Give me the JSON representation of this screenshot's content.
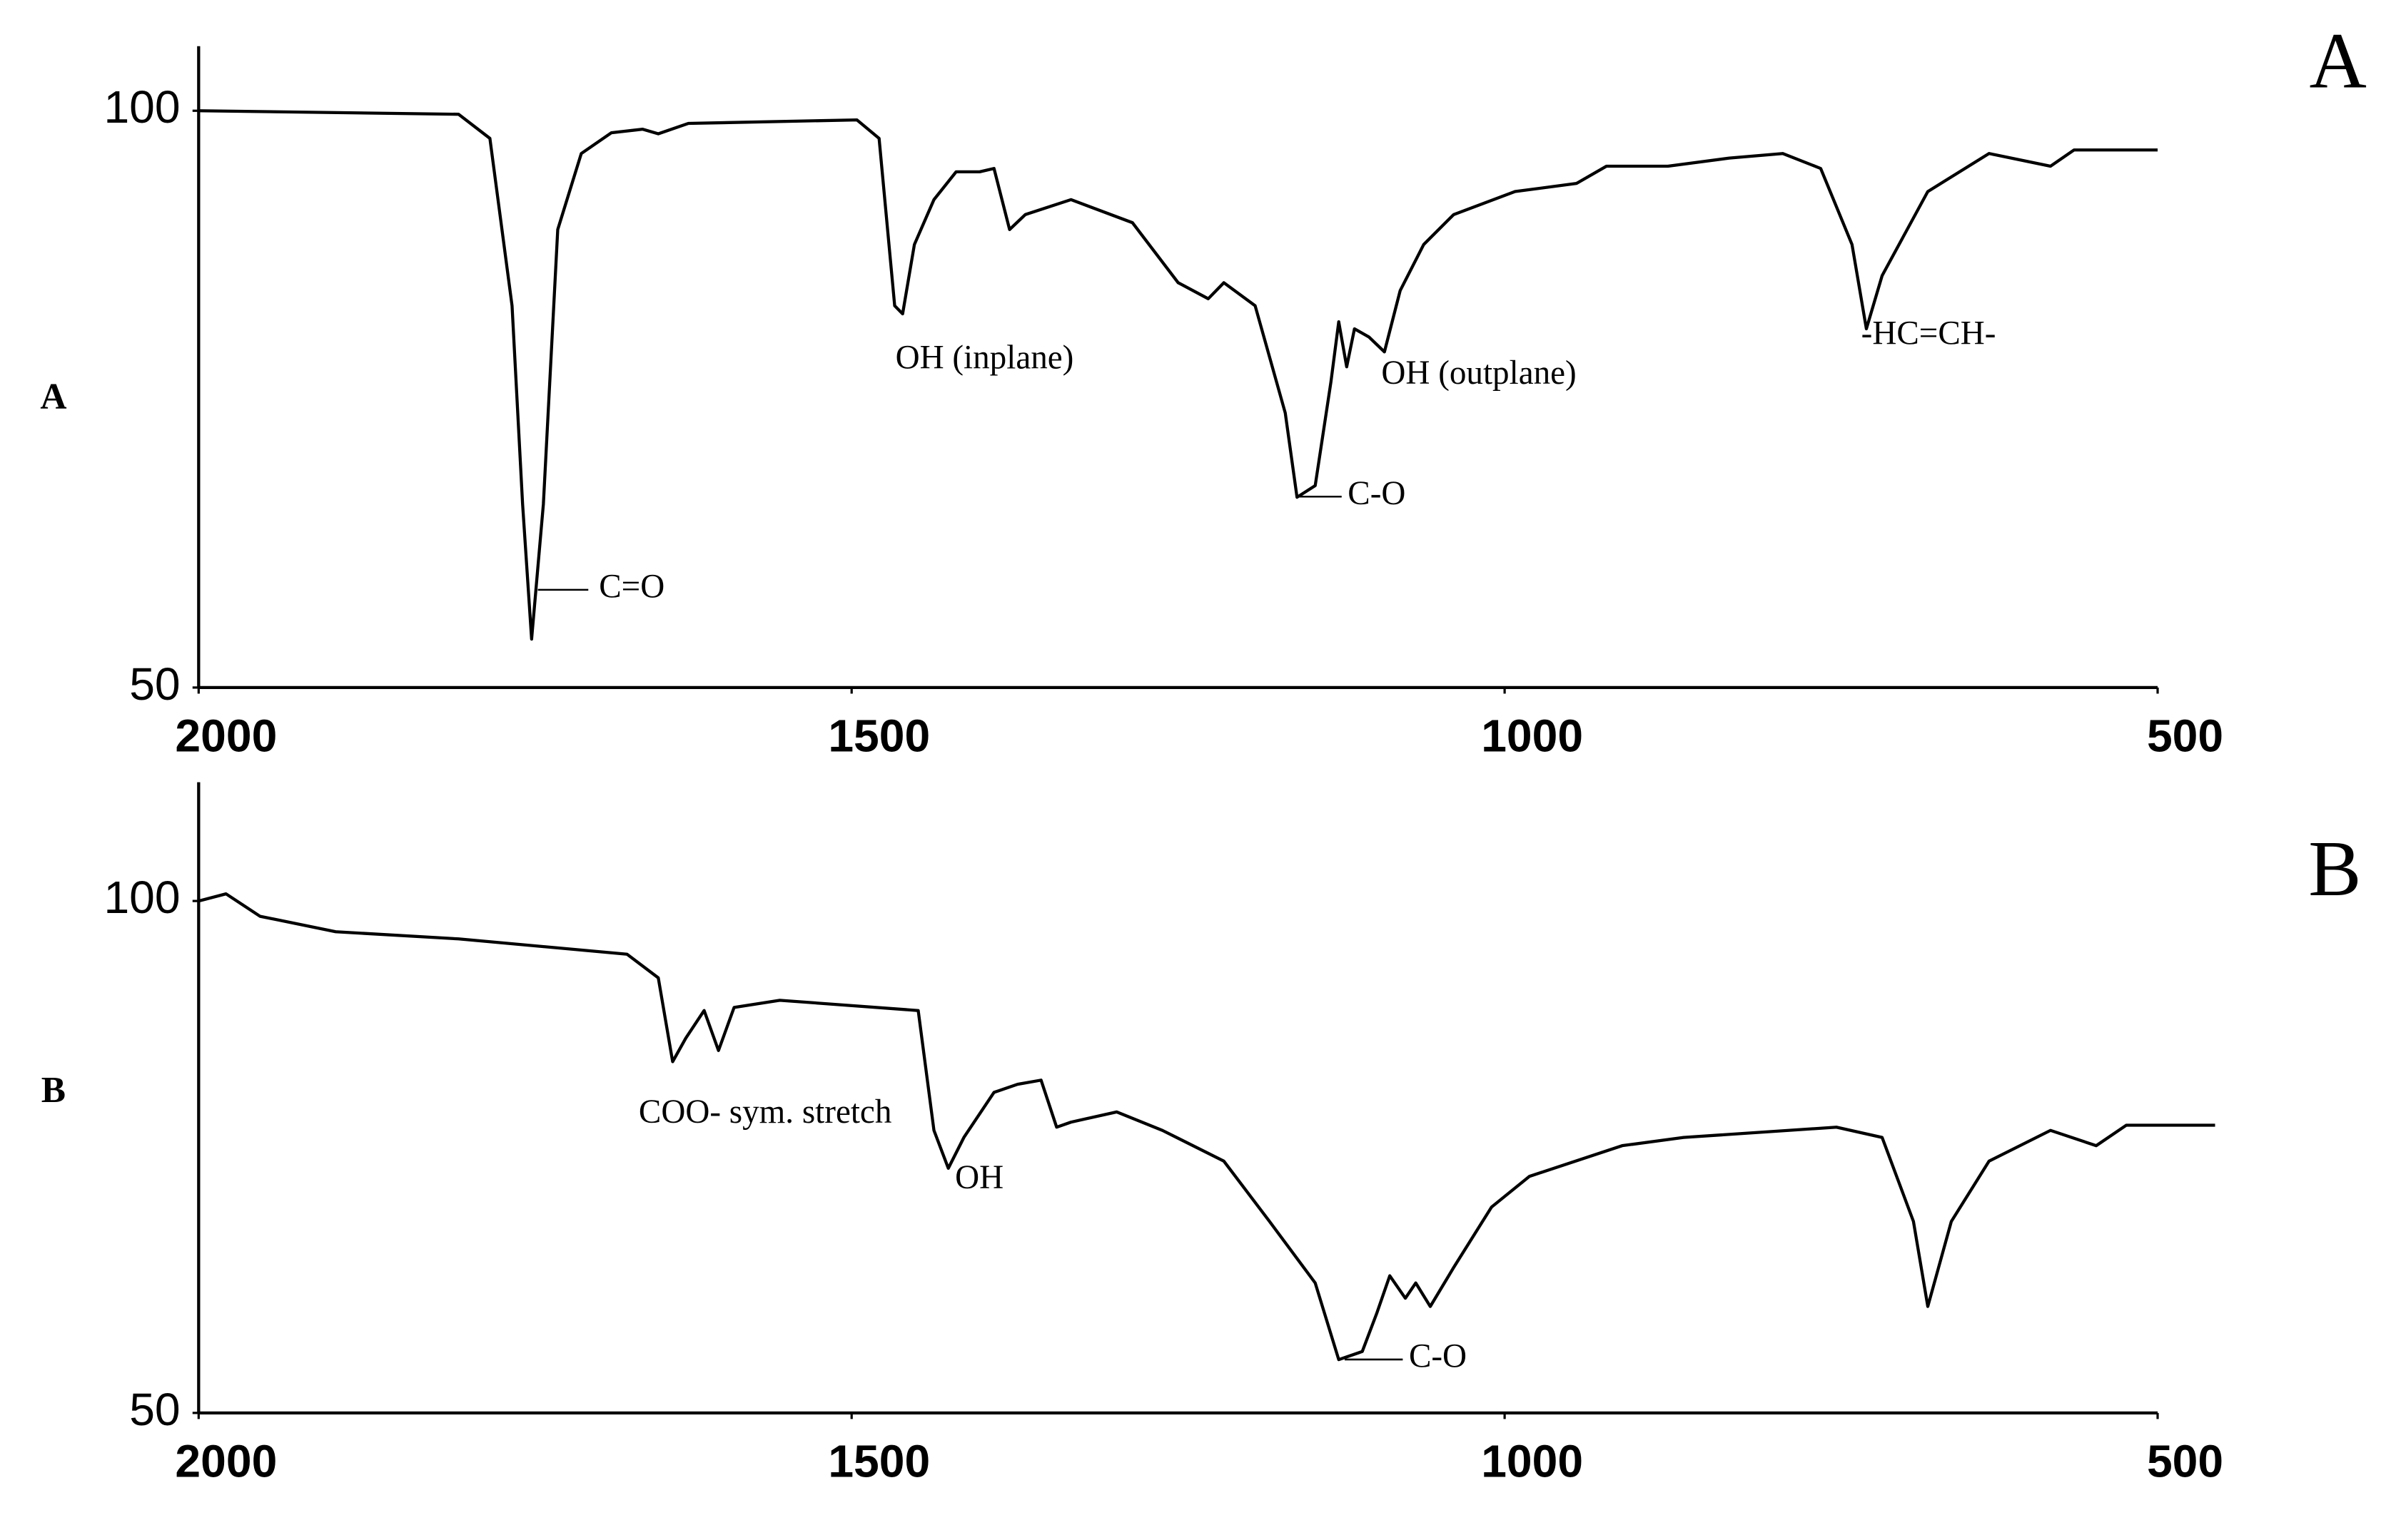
{
  "chart_data": [
    {
      "type": "line",
      "title": "A",
      "ylabel": "A",
      "color": "#000000",
      "x": [
        2000,
        1801,
        1777,
        1760,
        1752,
        1745,
        1736,
        1725,
        1707,
        1684,
        1660,
        1648,
        1625,
        1496,
        1479,
        1467,
        1461,
        1452,
        1437,
        1420,
        1402,
        1391,
        1379,
        1367,
        1332,
        1285,
        1250,
        1227,
        1215,
        1191,
        1168,
        1159,
        1145,
        1133,
        1127,
        1121,
        1115,
        1104,
        1092,
        1080,
        1062,
        1039,
        992,
        945,
        922,
        875,
        828,
        787,
        758,
        734,
        723,
        711,
        676,
        629,
        582,
        564,
        500
      ],
      "values": [
        100,
        99.7,
        97.6,
        83.1,
        65.9,
        54.2,
        65.9,
        89.7,
        96.3,
        98.1,
        98.4,
        98.0,
        98.9,
        99.2,
        97.6,
        83.1,
        82.4,
        88.4,
        92.3,
        94.7,
        94.7,
        95.0,
        89.7,
        91.0,
        92.3,
        90.3,
        85.1,
        83.7,
        85.1,
        83.1,
        73.8,
        66.5,
        67.5,
        76.5,
        81.7,
        77.8,
        81.1,
        80.4,
        79.1,
        84.4,
        88.4,
        91.0,
        93.0,
        93.7,
        95.2,
        95.2,
        95.9,
        96.3,
        95.0,
        88.4,
        81.1,
        85.7,
        93.0,
        96.3,
        95.2,
        96.6,
        96.6
      ],
      "xlim": [
        2000,
        500
      ],
      "xticks": [
        2000,
        1500,
        1000,
        500
      ],
      "ylim": [
        50,
        105.6
      ],
      "yticks": [
        50,
        100
      ],
      "annotations": [
        "C=O",
        "OH (inplane)",
        "C-O",
        "OH (outplane)",
        "-HC=CH-"
      ]
    },
    {
      "type": "line",
      "title": "B",
      "ylabel": "B",
      "color": "#000000",
      "x": [
        2000,
        1979,
        1953,
        1895,
        1801,
        1672,
        1648,
        1637,
        1627,
        1613,
        1602,
        1590,
        1555,
        1449,
        1437,
        1426,
        1414,
        1391,
        1373,
        1355,
        1343,
        1332,
        1297,
        1262,
        1215,
        1180,
        1145,
        1127,
        1109,
        1098,
        1088,
        1076,
        1068,
        1057,
        1039,
        1010,
        981,
        910,
        863,
        746,
        711,
        687,
        676,
        658,
        629,
        582,
        547,
        524,
        456
      ],
      "values": [
        100,
        100.7,
        98.5,
        97.0,
        96.3,
        94.8,
        92.5,
        84.3,
        86.6,
        89.3,
        85.4,
        89.6,
        90.3,
        89.3,
        77.6,
        73.9,
        76.9,
        81.3,
        82.1,
        82.5,
        77.9,
        78.4,
        79.4,
        77.6,
        74.6,
        68.7,
        62.7,
        55.2,
        56.0,
        59.7,
        63.4,
        61.2,
        62.7,
        60.4,
        64.2,
        70.1,
        73.1,
        76.1,
        76.9,
        77.9,
        76.9,
        68.7,
        60.4,
        68.7,
        74.6,
        77.6,
        76.1,
        78.1,
        78.1
      ],
      "xlim": [
        2000,
        500
      ],
      "xticks": [
        2000,
        1500,
        1000,
        500
      ],
      "ylim": [
        50,
        111.6
      ],
      "yticks": [
        50,
        100
      ],
      "annotations": [
        "COO- sym. stretch",
        "OH",
        "C-O"
      ]
    }
  ]
}
